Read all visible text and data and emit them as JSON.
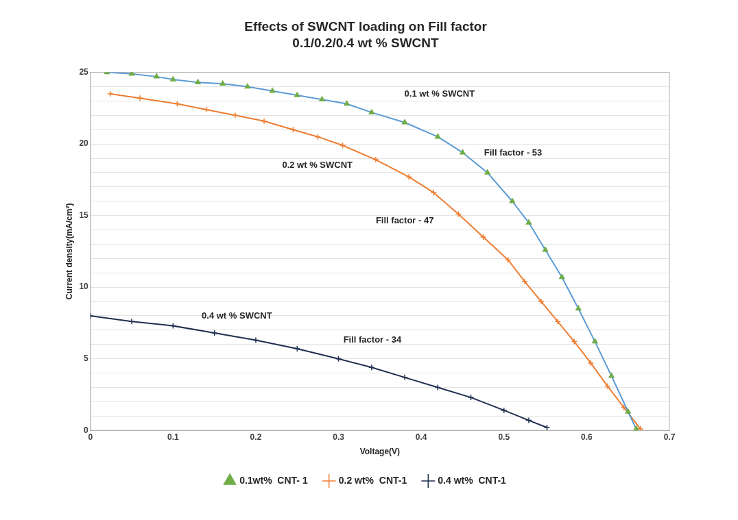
{
  "chart_data": {
    "type": "line",
    "title": "Effects of SWCNT loading on Fill factor",
    "subtitle": "0.1/0.2/0.4 wt % SWCNT",
    "xlabel": "Voltage(V)",
    "ylabel": "Current density(mA/cm²)",
    "xlim": [
      0,
      0.7
    ],
    "xticks": [
      0,
      0.1,
      0.2,
      0.3,
      0.4,
      0.5,
      0.6,
      0.7
    ],
    "ylim": [
      0,
      25
    ],
    "yticks": [
      0,
      {
        "value": 1,
        "label": null
      },
      {
        "value": 2,
        "label": null
      },
      {
        "value": 3,
        "label": null
      },
      {
        "value": 4,
        "label": null
      },
      5,
      {
        "value": 6,
        "label": null
      },
      {
        "value": 7,
        "label": null
      },
      {
        "value": 8,
        "label": null
      },
      {
        "value": 9,
        "label": null
      },
      10,
      {
        "value": 11,
        "label": null
      },
      {
        "value": 12,
        "label": null
      },
      {
        "value": 13,
        "label": null
      },
      {
        "value": 14,
        "label": null
      },
      15,
      {
        "value": 16,
        "label": null
      },
      {
        "value": 17,
        "label": null
      },
      {
        "value": 18,
        "label": null
      },
      {
        "value": 19,
        "label": null
      },
      20,
      {
        "value": 21,
        "label": null
      },
      {
        "value": 22,
        "label": null
      },
      {
        "value": 23,
        "label": null
      },
      {
        "value": 24,
        "label": null
      },
      25
    ],
    "grid": "y",
    "legend": "bottom",
    "line_style": "solid",
    "series": [
      {
        "name": "0.1wt%  CNT- 1",
        "color": "#5b9bd5",
        "marker": "triangle",
        "x": [
          0.02,
          0.05,
          0.08,
          0.1,
          0.13,
          0.16,
          0.19,
          0.22,
          0.25,
          0.28,
          0.31,
          0.34,
          0.38,
          0.42,
          0.45,
          0.48,
          0.51,
          0.53,
          0.55,
          0.57,
          0.59,
          0.61,
          0.63,
          0.65,
          0.66
        ],
        "values": [
          25.0,
          24.9,
          24.7,
          24.5,
          24.3,
          24.2,
          24.0,
          23.7,
          23.4,
          23.1,
          22.8,
          22.2,
          21.5,
          20.5,
          19.4,
          18.0,
          16.0,
          14.5,
          12.6,
          10.7,
          8.5,
          6.2,
          3.8,
          1.3,
          0.1
        ]
      },
      {
        "name": "0.2 wt%  CNT-1",
        "color": "#ed7d31",
        "marker": "cross",
        "x": [
          0.024,
          0.06,
          0.105,
          0.14,
          0.175,
          0.21,
          0.245,
          0.275,
          0.305,
          0.345,
          0.385,
          0.415,
          0.445,
          0.475,
          0.505,
          0.525,
          0.545,
          0.565,
          0.585,
          0.605,
          0.625,
          0.645,
          0.665
        ],
        "values": [
          23.5,
          23.2,
          22.8,
          22.4,
          22.0,
          21.6,
          21.0,
          20.5,
          19.9,
          18.9,
          17.7,
          16.6,
          15.1,
          13.5,
          11.9,
          10.4,
          9.0,
          7.6,
          6.2,
          4.7,
          3.1,
          1.6,
          0.1
        ]
      },
      {
        "name": "0.4 wt%  CNT-1",
        "color": "#1f3050",
        "marker": "cross",
        "x": [
          0,
          0.05,
          0.1,
          0.15,
          0.2,
          0.25,
          0.3,
          0.34,
          0.38,
          0.42,
          0.46,
          0.5,
          0.53,
          0.552
        ],
        "values": [
          8.0,
          7.6,
          7.3,
          6.8,
          6.3,
          5.7,
          5.0,
          4.4,
          3.7,
          3.0,
          2.3,
          1.4,
          0.7,
          0.2
        ]
      }
    ],
    "annotations": [
      "0.1 wt % SWCNT",
      "Fill factor - 53",
      "0.2 wt % SWCNT",
      "Fill factor - 47",
      "0.4 wt % SWCNT",
      "Fill factor - 34"
    ]
  }
}
